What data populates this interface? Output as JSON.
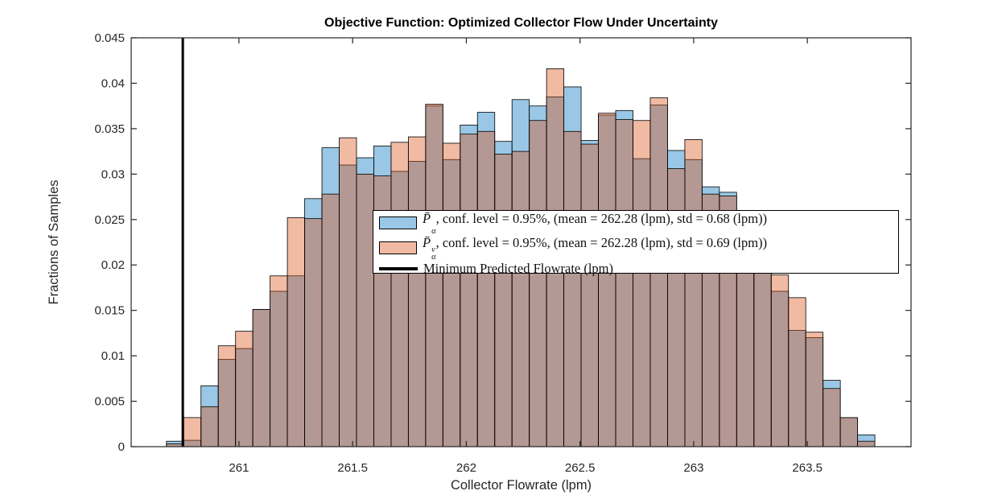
{
  "title": "Objective Function: Optimized Collector Flow Under Uncertainty",
  "axes": {
    "x_label": "Collector Flowrate (lpm)",
    "y_label": "Fractions of Samples"
  },
  "colors": {
    "blue_base": "#0072BD",
    "orange_base": "#D95319",
    "blue_fill": "rgba(0,114,189,0.4)",
    "orange_fill": "rgba(217,83,25,0.4)",
    "bar_edge": "#000000",
    "axis_color": "#262626",
    "vline_color": "#000000",
    "background": "#ffffff"
  },
  "legend": {
    "items": [
      {
        "swatch": "patch-blue",
        "p": "P̄",
        "sub": "α",
        "sup": "",
        "text": ", conf. level = 0.95%, (mean = 262.28 (lpm), std = 0.68 (lpm))"
      },
      {
        "swatch": "patch-orange",
        "p": "P̄",
        "sub": "α",
        "sup": "v",
        "text": ", conf. level = 0.95%, (mean = 262.28 (lpm), std = 0.69 (lpm))"
      },
      {
        "swatch": "line-black",
        "p": "",
        "sub": "",
        "sup": "",
        "text": "Minimum Predicted Flowrate (lpm)"
      }
    ]
  },
  "chart_data": {
    "type": "bar",
    "subtype": "overlaid-histograms",
    "title": "Objective Function: Optimized Collector Flow Under Uncertainty",
    "xlabel": "Collector Flowrate (lpm)",
    "ylabel": "Fractions of Samples",
    "xlim": [
      260.526,
      263.956
    ],
    "ylim": [
      0,
      0.045
    ],
    "grid": false,
    "legend_position": "center-right",
    "x_ticks": [
      261,
      261.5,
      262,
      262.5,
      263,
      263.5
    ],
    "x_tick_labels": [
      "261",
      "261.5",
      "262",
      "262.5",
      "263",
      "263.5"
    ],
    "y_ticks": [
      0,
      0.005,
      0.01,
      0.015,
      0.02,
      0.025,
      0.03,
      0.035,
      0.04,
      0.045
    ],
    "y_tick_labels": [
      "0",
      "0.005",
      "0.01",
      "0.015",
      "0.02",
      "0.025",
      "0.03",
      "0.035",
      "0.04",
      "0.045"
    ],
    "vline_x": 260.753,
    "bin_start": 260.681,
    "bin_width": 0.076,
    "series": [
      {
        "name": "P̄α, conf. level = 0.95%, (mean = 262.28 (lpm), std = 0.68 (lpm))",
        "mean": 262.28,
        "std": 0.68,
        "conf_level": "0.95%",
        "values": [
          0.0006,
          0.0007,
          0.0067,
          0.0096,
          0.0108,
          0.0151,
          0.0171,
          0.0188,
          0.0273,
          0.0329,
          0.031,
          0.0318,
          0.0331,
          0.0303,
          0.0314,
          0.0375,
          0.0316,
          0.0354,
          0.0368,
          0.0336,
          0.0382,
          0.0375,
          0.0385,
          0.0396,
          0.0337,
          0.0365,
          0.037,
          0.0317,
          0.0376,
          0.0326,
          0.0316,
          0.0286,
          0.028,
          0.0242,
          0.0205,
          0.0171,
          0.0128,
          0.012,
          0.0073,
          0.0032,
          0.0013
        ]
      },
      {
        "name": "P̄αᵛ, conf. level = 0.95%, (mean = 262.28 (lpm), std = 0.69 (lpm))",
        "mean": 262.28,
        "std": 0.69,
        "conf_level": "0.95%",
        "values": [
          0.0003,
          0.0032,
          0.0044,
          0.0111,
          0.0127,
          0.0151,
          0.0188,
          0.0252,
          0.0251,
          0.0278,
          0.034,
          0.03,
          0.0298,
          0.0335,
          0.0341,
          0.0377,
          0.0334,
          0.0344,
          0.0347,
          0.0322,
          0.0325,
          0.0359,
          0.0416,
          0.0347,
          0.0333,
          0.0367,
          0.036,
          0.0359,
          0.0384,
          0.0306,
          0.0338,
          0.0278,
          0.0276,
          0.0238,
          0.021,
          0.0189,
          0.0164,
          0.0126,
          0.0064,
          0.0032,
          0.0006
        ]
      },
      {
        "name": "Minimum Predicted Flowrate (lpm)",
        "type": "vline",
        "x": 260.753
      }
    ]
  }
}
